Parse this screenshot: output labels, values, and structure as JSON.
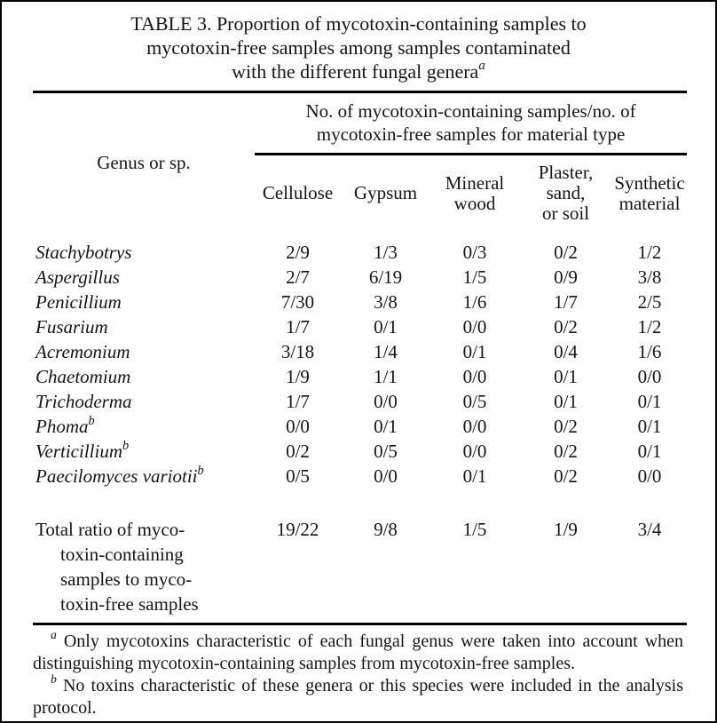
{
  "title": {
    "text": "TABLE 3. Proportion of mycotoxin-containing samples to\nmycotoxin-free samples among samples contaminated\nwith the different fungal genera",
    "footnote_marker": "a"
  },
  "table": {
    "stub_header": "Genus or sp.",
    "spanner_header": "No. of mycotoxin-containing samples/no. of\nmycotoxin-free samples for material type",
    "columns": [
      "Cellulose",
      "Gypsum",
      "Mineral\nwood",
      "Plaster,\nsand,\nor soil",
      "Synthetic\nmaterial"
    ],
    "rows": [
      {
        "genus": "Stachybotrys",
        "marker": "",
        "values": [
          "2/9",
          "1/3",
          "0/3",
          "0/2",
          "1/2"
        ]
      },
      {
        "genus": "Aspergillus",
        "marker": "",
        "values": [
          "2/7",
          "6/19",
          "1/5",
          "0/9",
          "3/8"
        ]
      },
      {
        "genus": "Penicillium",
        "marker": "",
        "values": [
          "7/30",
          "3/8",
          "1/6",
          "1/7",
          "2/5"
        ]
      },
      {
        "genus": "Fusarium",
        "marker": "",
        "values": [
          "1/7",
          "0/1",
          "0/0",
          "0/2",
          "1/2"
        ]
      },
      {
        "genus": "Acremonium",
        "marker": "",
        "values": [
          "3/18",
          "1/4",
          "0/1",
          "0/4",
          "1/6"
        ]
      },
      {
        "genus": "Chaetomium",
        "marker": "",
        "values": [
          "1/9",
          "1/1",
          "0/0",
          "0/1",
          "0/0"
        ]
      },
      {
        "genus": "Trichoderma",
        "marker": "",
        "values": [
          "1/7",
          "0/0",
          "0/5",
          "0/1",
          "0/1"
        ]
      },
      {
        "genus": "Phoma",
        "marker": "b",
        "values": [
          "0/0",
          "0/1",
          "0/0",
          "0/2",
          "0/1"
        ]
      },
      {
        "genus": "Verticillium",
        "marker": "b",
        "values": [
          "0/2",
          "0/5",
          "0/0",
          "0/2",
          "0/1"
        ]
      },
      {
        "genus": "Paecilomyces variotii",
        "marker": "b",
        "values": [
          "0/5",
          "0/0",
          "0/1",
          "0/2",
          "0/0"
        ]
      }
    ],
    "total_row": {
      "label": "Total ratio of myco-\ntoxin-containing\nsamples to myco-\ntoxin-free samples",
      "values": [
        "19/22",
        "9/8",
        "1/5",
        "1/9",
        "3/4"
      ]
    }
  },
  "footnotes": [
    {
      "marker": "a",
      "text": "Only mycotoxins characteristic of each fungal genus were taken into account when distinguishing mycotoxin-containing samples from mycotoxin-free samples."
    },
    {
      "marker": "b",
      "text": "No toxins characteristic of these genera or this species were included in the analysis protocol."
    }
  ],
  "colors": {
    "text": "#151515",
    "rule": "#000000",
    "background": "#ffffff"
  }
}
